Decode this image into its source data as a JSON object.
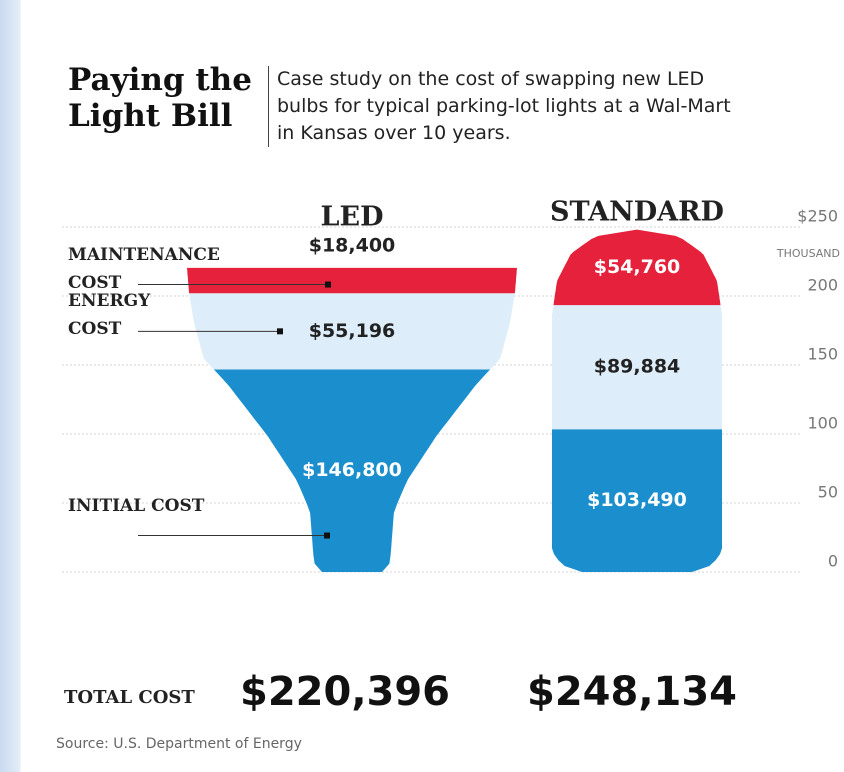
{
  "chart_data": {
    "type": "stacked-shape",
    "title": "Paying the Light Bill",
    "subtitle": "Case study on the cost of swapping new LED bulbs for typical parking-lot lights at a Wal-Mart in Kansas over 10 years.",
    "categories": [
      "LED",
      "STANDARD"
    ],
    "series": [
      {
        "name": "INITIAL COST",
        "color": "#1b8fcd",
        "values": [
          146.8,
          103.49
        ],
        "value_labels": [
          "$146,800",
          "$103,490"
        ]
      },
      {
        "name": "ENERGY COST",
        "color": "#ddeefa",
        "values": [
          55.196,
          89.884
        ],
        "value_labels": [
          "$55,196",
          "$89,884"
        ]
      },
      {
        "name": "MAINTENANCE COST",
        "color": "#e5213b",
        "values": [
          18.4,
          54.76
        ],
        "value_labels": [
          "$18,400",
          "$54,760"
        ]
      }
    ],
    "ylim": [
      0,
      250
    ],
    "yticks": [
      0,
      50,
      100,
      150,
      200,
      {
        "value": 250,
        "label": "$250"
      }
    ],
    "y_unit": "THOUSAND",
    "grid": true,
    "totals": {
      "label": "TOTAL COST",
      "values": [
        220.396,
        248.134
      ],
      "value_labels": [
        "$220,396",
        "$248,134"
      ]
    },
    "source": "Source: U.S. Department of Energy"
  }
}
